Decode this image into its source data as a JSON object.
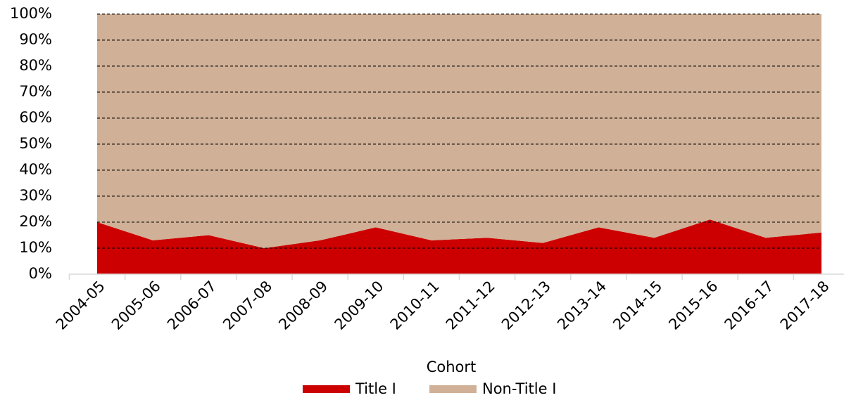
{
  "chart_data": {
    "type": "stacked_area",
    "x_label": "Cohort",
    "categories": [
      "2004-05",
      "2005-06",
      "2006-07",
      "2007-08",
      "2008-09",
      "2009-10",
      "2010-11",
      "2011-12",
      "2012-13",
      "2013-14",
      "2014-15",
      "2015-16",
      "2016-17",
      "2017-18"
    ],
    "series": [
      {
        "name": "Title I",
        "color": "#cc0000",
        "values": [
          20,
          13,
          15,
          10,
          13,
          18,
          13,
          14,
          12,
          18,
          14,
          21,
          14,
          16
        ]
      },
      {
        "name": "Non-Title I",
        "color": "#d0b096",
        "values": [
          80,
          87,
          85,
          90,
          87,
          82,
          87,
          86,
          88,
          82,
          86,
          79,
          86,
          84
        ]
      }
    ],
    "ylim": [
      0,
      100
    ],
    "yticks": [
      {
        "value": 0,
        "label": "0%"
      },
      {
        "value": 10,
        "label": "10%"
      },
      {
        "value": 20,
        "label": "20%"
      },
      {
        "value": 30,
        "label": "30%"
      },
      {
        "value": 40,
        "label": "40%"
      },
      {
        "value": 50,
        "label": "50%"
      },
      {
        "value": 60,
        "label": "60%"
      },
      {
        "value": 70,
        "label": "70%"
      },
      {
        "value": 80,
        "label": "80%"
      },
      {
        "value": 90,
        "label": "90%"
      },
      {
        "value": 100,
        "label": "100%"
      }
    ],
    "grid": true,
    "legend": "bottom"
  }
}
